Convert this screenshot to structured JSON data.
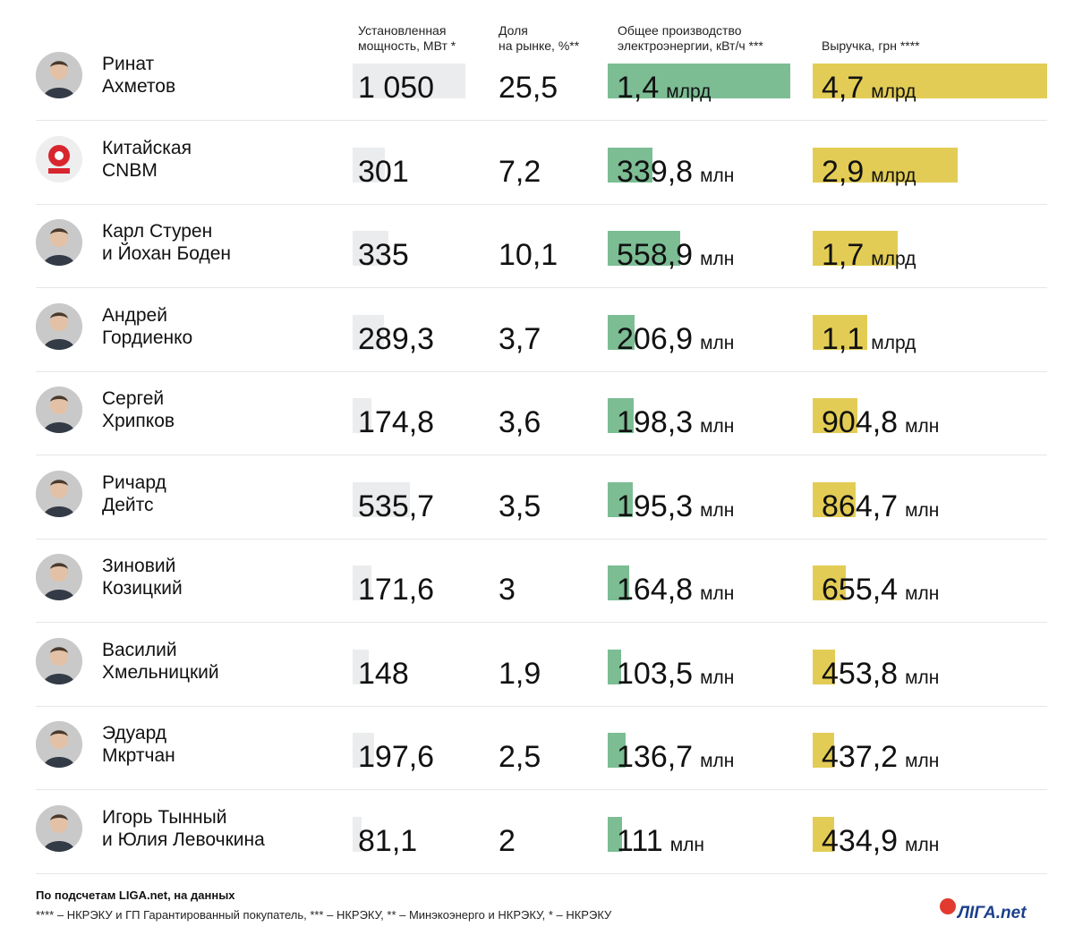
{
  "headers": {
    "capacity": "Установленная\nмощность, МВт *",
    "share": "Доля\nна рынке, %**",
    "generation": "Общее производство\nэлектроэнергии, кВт/ч ***",
    "revenue": "Выручка, грн ****"
  },
  "chart_data": {
    "type": "table",
    "columns": [
      "Установленная мощность, МВт *",
      "Доля на рынке, %**",
      "Общее производство электроэнергии, кВт/ч ***",
      "Выручка, грн ****"
    ],
    "rows": [
      {
        "name": "Ринат\nАхметов",
        "capacity": "1 050",
        "capacity_value": 1050,
        "share": "25,5",
        "generation": "1,4",
        "generation_unit": "млрд",
        "generation_value": 1400,
        "revenue": "4,7",
        "revenue_unit": "млрд",
        "revenue_value": 4700
      },
      {
        "name": "Китайская\nCNBM",
        "capacity": "301",
        "capacity_value": 301,
        "share": "7,2",
        "generation": "339,8",
        "generation_unit": "млн",
        "generation_value": 339.8,
        "revenue": "2,9",
        "revenue_unit": "млрд",
        "revenue_value": 2900
      },
      {
        "name": "Карл Стурен\nи Йохан Боден",
        "capacity": "335",
        "capacity_value": 335,
        "share": "10,1",
        "generation": "558,9",
        "generation_unit": "млн",
        "generation_value": 558.9,
        "revenue": "1,7",
        "revenue_unit": "млрд",
        "revenue_value": 1700
      },
      {
        "name": "Андрей\nГордиенко",
        "capacity": "289,3",
        "capacity_value": 289.3,
        "share": "3,7",
        "generation": "206,9",
        "generation_unit": "млн",
        "generation_value": 206.9,
        "revenue": "1,1",
        "revenue_unit": "млрд",
        "revenue_value": 1100
      },
      {
        "name": "Сергей\nХрипков",
        "capacity": "174,8",
        "capacity_value": 174.8,
        "share": "3,6",
        "generation": "198,3",
        "generation_unit": "млн",
        "generation_value": 198.3,
        "revenue": "904,8",
        "revenue_unit": "млн",
        "revenue_value": 904.8
      },
      {
        "name": "Ричард\nДейтс",
        "capacity": "535,7",
        "capacity_value": 535.7,
        "share": "3,5",
        "generation": "195,3",
        "generation_unit": "млн",
        "generation_value": 195.3,
        "revenue": "864,7",
        "revenue_unit": "млн",
        "revenue_value": 864.7
      },
      {
        "name": "Зиновий\nКозицкий",
        "capacity": "171,6",
        "capacity_value": 171.6,
        "share": "3",
        "generation": "164,8",
        "generation_unit": "млн",
        "generation_value": 164.8,
        "revenue": "655,4",
        "revenue_unit": "млн",
        "revenue_value": 655.4
      },
      {
        "name": "Василий\nХмельницкий",
        "capacity": "148",
        "capacity_value": 148,
        "share": "1,9",
        "generation": "103,5",
        "generation_unit": "млн",
        "generation_value": 103.5,
        "revenue": "453,8",
        "revenue_unit": "млн",
        "revenue_value": 453.8
      },
      {
        "name": "Эдуард\nМкртчан",
        "capacity": "197,6",
        "capacity_value": 197.6,
        "share": "2,5",
        "generation": "136,7",
        "generation_unit": "млн",
        "generation_value": 136.7,
        "revenue": "437,2",
        "revenue_unit": "млн",
        "revenue_value": 437.2
      },
      {
        "name": "Игорь Тынный\nи Юлия Левочкина",
        "capacity": "81,1",
        "capacity_value": 81.1,
        "share": "2",
        "generation": "111",
        "generation_unit": "млн",
        "generation_value": 111,
        "revenue": "434,9",
        "revenue_unit": "млн",
        "revenue_value": 434.9
      }
    ],
    "colors": {
      "capacity_bar": "#eaecee",
      "generation_bar": "#7cbd94",
      "revenue_bar": "#e3cc55"
    }
  },
  "footer": {
    "source": "По подсчетам LIGA.net, на данных",
    "notes": "**** – НКРЭКУ и ГП Гарантированный покупатель, *** – НКРЭКУ, ** – Минэкоэнерго и НКРЭКУ, * – НКРЭКУ"
  },
  "logo": {
    "text": "ЛIГА.net"
  },
  "avatar_icons": [
    "person-avatar-icon",
    "cnbm-logo-icon"
  ]
}
